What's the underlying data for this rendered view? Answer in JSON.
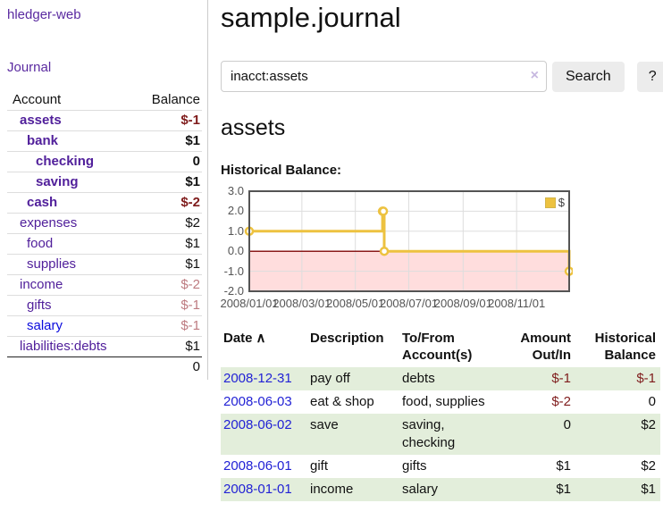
{
  "colors": {
    "link_purple": "#51209b",
    "link_blue": "#0b0bdd",
    "date_link_blue": "#2222d5",
    "negative_strong": "#7f1c1c",
    "negative_soft": "#bd7b80",
    "row_stripe_green": "#e3eedb",
    "accent_yellow": "#edc240",
    "chart_negative_fill": "#ffdddd",
    "chart_zero_line": "#8b1a1a",
    "chart_border": "#545454",
    "button_gray": "#ececec"
  },
  "sidebar": {
    "app_title": "hledger-web",
    "nav_journal": "Journal",
    "accounts": {
      "header_account": "Account",
      "header_balance": "Balance",
      "rows": [
        {
          "name": "assets",
          "depth": 1,
          "bold": true,
          "balance": "$-1",
          "bal_tone": "neg-strong"
        },
        {
          "name": "bank",
          "depth": 2,
          "bold": true,
          "balance": "$1",
          "bal_tone": "normal"
        },
        {
          "name": "checking",
          "depth": 3,
          "bold": true,
          "balance": "0",
          "bal_tone": "normal"
        },
        {
          "name": "saving",
          "depth": 3,
          "bold": true,
          "balance": "$1",
          "bal_tone": "normal"
        },
        {
          "name": "cash",
          "depth": 2,
          "bold": true,
          "balance": "$-2",
          "bal_tone": "neg-strong"
        },
        {
          "name": "expenses",
          "depth": 1,
          "bold": false,
          "balance": "$2",
          "bal_tone": "normal"
        },
        {
          "name": "food",
          "depth": 2,
          "bold": false,
          "balance": "$1",
          "bal_tone": "normal"
        },
        {
          "name": "supplies",
          "depth": 2,
          "bold": false,
          "balance": "$1",
          "bal_tone": "normal"
        },
        {
          "name": "income",
          "depth": 1,
          "bold": false,
          "balance": "$-2",
          "bal_tone": "neg-soft"
        },
        {
          "name": "gifts",
          "depth": 2,
          "bold": false,
          "balance": "$-1",
          "bal_tone": "neg-soft"
        },
        {
          "name": "salary",
          "depth": 2,
          "bold": false,
          "balance": "$-1",
          "bal_tone": "neg-soft",
          "link_tone": "blue"
        },
        {
          "name": "liabilities:debts",
          "depth": 1,
          "bold": false,
          "balance": "$1",
          "bal_tone": "normal"
        }
      ],
      "total": "0"
    }
  },
  "main": {
    "title": "sample.journal",
    "search": {
      "value": "inacct:assets",
      "clear_icon": "×",
      "search_button": "Search",
      "help_button": "?"
    },
    "account_heading": "assets",
    "chart_title": "Historical Balance:"
  },
  "chart_data": {
    "type": "line",
    "subtype": "step",
    "title": "Historical Balance",
    "legend_position": "top-right",
    "legend": [
      {
        "name": "$",
        "color": "#edc240"
      }
    ],
    "x_range": [
      "2008-01-01",
      "2008-12-31"
    ],
    "ylim": [
      -2,
      3
    ],
    "grid": true,
    "negative_region_fill": "#ffdddd",
    "series": [
      {
        "name": "$",
        "color": "#edc240",
        "points": [
          [
            "2008-01-01",
            1
          ],
          [
            "2008-06-01",
            2
          ],
          [
            "2008-06-02",
            2
          ],
          [
            "2008-06-03",
            0
          ],
          [
            "2008-12-31",
            -1
          ]
        ]
      }
    ],
    "xticks": [
      {
        "date": "2008-01-01",
        "label": "2008/01/01"
      },
      {
        "date": "2008-03-01",
        "label": "2008/03/01"
      },
      {
        "date": "2008-05-01",
        "label": "2008/05/01"
      },
      {
        "date": "2008-07-01",
        "label": "2008/07/01"
      },
      {
        "date": "2008-09-01",
        "label": "2008/09/01"
      },
      {
        "date": "2008-11-01",
        "label": "2008/11/01"
      }
    ],
    "yticks": [
      {
        "v": 3,
        "label": "3.0"
      },
      {
        "v": 2,
        "label": "2.0"
      },
      {
        "v": 1,
        "label": "1.0"
      },
      {
        "v": 0,
        "label": "0.0"
      },
      {
        "v": -1,
        "label": "-1.0"
      },
      {
        "v": -2,
        "label": "-2.0"
      }
    ]
  },
  "register": {
    "headers": {
      "date": "Date",
      "sort_icon": "∧",
      "description": "Description",
      "accounts": "To/From Account(s)",
      "amount": "Amount Out/In",
      "balance": "Historical Balance"
    },
    "rows": [
      {
        "date": "2008-12-31",
        "description": "pay off",
        "accounts": "debts",
        "amount": "$-1",
        "amount_tone": "neg-strong",
        "balance": "$-1",
        "balance_tone": "neg-strong",
        "striped": true
      },
      {
        "date": "2008-06-03",
        "description": "eat & shop",
        "accounts": "food, supplies",
        "amount": "$-2",
        "amount_tone": "neg-strong",
        "balance": "0",
        "balance_tone": "normal",
        "striped": false
      },
      {
        "date": "2008-06-02",
        "description": "save",
        "accounts": "saving, checking",
        "amount": "0",
        "amount_tone": "normal",
        "balance": "$2",
        "balance_tone": "normal",
        "striped": true
      },
      {
        "date": "2008-06-01",
        "description": "gift",
        "accounts": "gifts",
        "amount": "$1",
        "amount_tone": "normal",
        "balance": "$2",
        "balance_tone": "normal",
        "striped": false
      },
      {
        "date": "2008-01-01",
        "description": "income",
        "accounts": "salary",
        "amount": "$1",
        "amount_tone": "normal",
        "balance": "$1",
        "balance_tone": "normal",
        "striped": true
      }
    ]
  }
}
